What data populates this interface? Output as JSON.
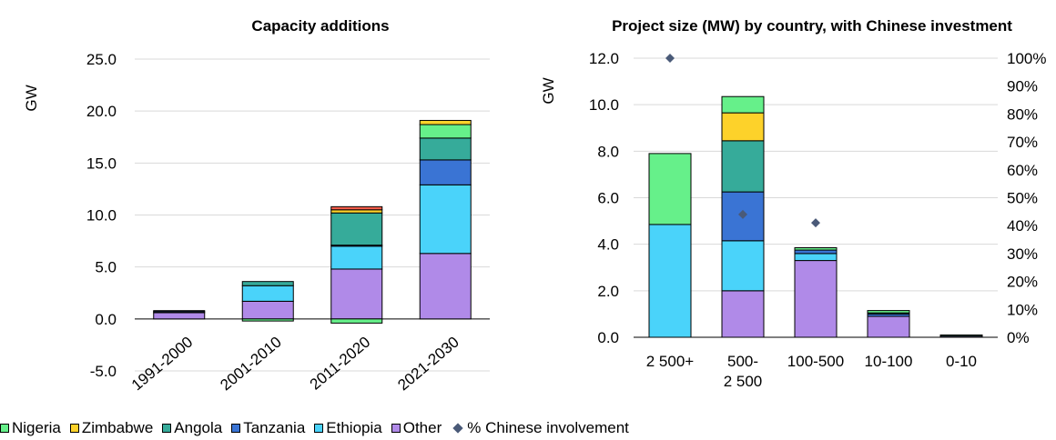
{
  "chart_data": [
    {
      "type": "bar",
      "stacked": true,
      "title": "Capacity additions",
      "ylabel": "GW",
      "ylim": [
        -5,
        25
      ],
      "yticks": [
        "-5.0",
        "0.0",
        "5.0",
        "10.0",
        "15.0",
        "20.0",
        "25.0"
      ],
      "categories": [
        "1991-2000",
        "2001-2010",
        "2011-2020",
        "2021-2030"
      ],
      "series": [
        {
          "name": "Other",
          "values": [
            0.6,
            1.7,
            4.8,
            6.3
          ]
        },
        {
          "name": "Ethiopia",
          "values": [
            0.1,
            1.5,
            2.2,
            6.6
          ]
        },
        {
          "name": "Tanzania",
          "values": [
            0.1,
            0.0,
            0.1,
            2.4
          ]
        },
        {
          "name": "Angola",
          "values": [
            0.0,
            0.4,
            3.1,
            2.1
          ]
        },
        {
          "name": "Nigeria",
          "values": [
            0.0,
            -0.2,
            -0.4,
            1.3
          ]
        },
        {
          "name": "Zimbabwe",
          "values": [
            0.0,
            0.0,
            0.3,
            0.4
          ]
        },
        {
          "name": "Other red",
          "values": [
            0.0,
            0.0,
            0.3,
            0.0
          ]
        }
      ],
      "grid": true
    },
    {
      "type": "bar",
      "stacked": true,
      "title": "Project size (MW) by country, with Chinese investment",
      "ylabel": "GW",
      "ylim": [
        0,
        12
      ],
      "yticks": [
        "0.0",
        "2.0",
        "4.0",
        "6.0",
        "8.0",
        "10.0",
        "12.0"
      ],
      "y2lim": [
        0,
        100
      ],
      "y2ticks": [
        "0%",
        "10%",
        "20%",
        "30%",
        "40%",
        "50%",
        "60%",
        "70%",
        "80%",
        "90%",
        "100%"
      ],
      "categories": [
        [
          "2 500+"
        ],
        [
          "500-",
          "2 500"
        ],
        [
          "100-500"
        ],
        [
          "10-100"
        ],
        [
          "0-10"
        ]
      ],
      "series": [
        {
          "name": "Other",
          "values": [
            0.0,
            2.0,
            3.3,
            0.9,
            0.05
          ]
        },
        {
          "name": "Ethiopia",
          "values": [
            4.85,
            2.15,
            0.3,
            0.0,
            0.0
          ]
        },
        {
          "name": "Tanzania",
          "values": [
            0.0,
            2.1,
            0.15,
            0.1,
            0.0
          ]
        },
        {
          "name": "Angola",
          "values": [
            0.0,
            2.2,
            0.0,
            0.05,
            0.05
          ]
        },
        {
          "name": "Zimbabwe",
          "values": [
            0.0,
            1.2,
            0.0,
            0.0,
            0.0
          ]
        },
        {
          "name": "Nigeria",
          "values": [
            3.05,
            0.7,
            0.1,
            0.1,
            0.0
          ]
        }
      ],
      "markers": {
        "name": "% Chinese involvement",
        "values": [
          100,
          44,
          41,
          null,
          null
        ]
      },
      "grid": true
    }
  ],
  "colors": {
    "Nigeria": "#66f08a",
    "Zimbabwe": "#fdd22a",
    "Angola": "#36ab9a",
    "Tanzania": "#3a74d4",
    "Ethiopia": "#4ad3fa",
    "Other": "#b08ae8",
    "Other red": "#f25c4a",
    "marker": "#4a5a78"
  },
  "legend": [
    {
      "label": "Nigeria",
      "key": "Nigeria",
      "kind": "box"
    },
    {
      "label": "Zimbabwe",
      "key": "Zimbabwe",
      "kind": "box"
    },
    {
      "label": "Angola",
      "key": "Angola",
      "kind": "box"
    },
    {
      "label": "Tanzania",
      "key": "Tanzania",
      "kind": "box"
    },
    {
      "label": "Ethiopia",
      "key": "Ethiopia",
      "kind": "box"
    },
    {
      "label": "Other",
      "key": "Other",
      "kind": "box"
    },
    {
      "label": "% Chinese involvement",
      "key": "marker",
      "kind": "diamond"
    }
  ]
}
